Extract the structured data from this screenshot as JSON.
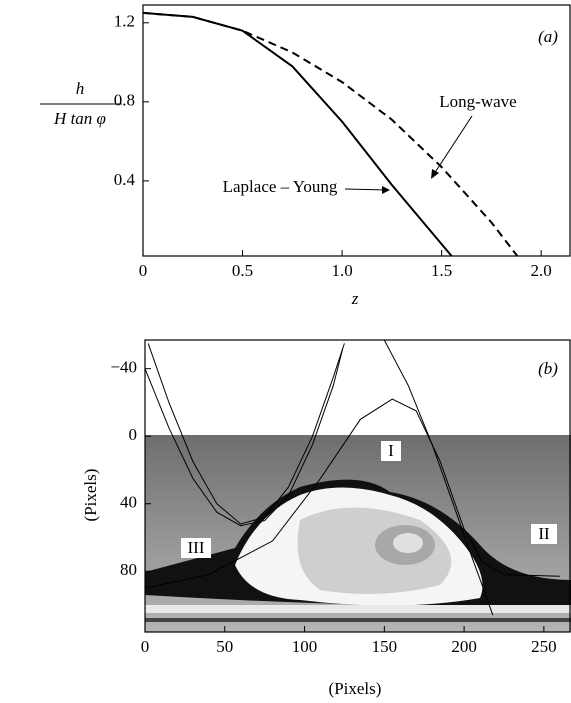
{
  "chart_data": [
    {
      "type": "line",
      "panel_label": "(a)",
      "xlabel": "z",
      "ylabel": {
        "numerator": "h",
        "denominator": "H tan φ"
      },
      "xlim": [
        0,
        2.15
      ],
      "ylim": [
        0.02,
        1.29
      ],
      "xticks": [
        0,
        0.5,
        {
          "value": 1,
          "label": "1.0"
        },
        1.5,
        {
          "value": 2,
          "label": "2.0"
        }
      ],
      "yticks": [
        0.4,
        0.8,
        1.2
      ],
      "annotations": [
        "Laplace – Young",
        "Long-wave"
      ],
      "series": [
        {
          "color": "#000",
          "dash": false,
          "x": [
            0,
            0.25,
            0.5,
            0.75,
            1.0,
            1.25,
            1.5,
            1.55
          ],
          "values": [
            1.25,
            1.23,
            1.16,
            0.98,
            0.7,
            0.38,
            0.08,
            0.02
          ]
        },
        {
          "color": "#000",
          "dash": true,
          "x": [
            0,
            0.25,
            0.5,
            0.75,
            1.0,
            1.25,
            1.5,
            1.75,
            1.88
          ],
          "values": [
            1.25,
            1.23,
            1.16,
            1.05,
            0.9,
            0.71,
            0.47,
            0.19,
            0.02
          ]
        }
      ]
    },
    {
      "type": "line",
      "panel_label": "(b)",
      "xlabel": "(Pixels)",
      "ylabel": "(Pixels)",
      "xlim": [
        0,
        267
      ],
      "ylim": [
        116,
        -57
      ],
      "xticks": [
        0,
        50,
        100,
        150,
        200,
        250
      ],
      "yticks": [
        {
          "value": -40,
          "label": "−40"
        },
        0,
        40,
        80
      ],
      "regions": [
        "I",
        "II",
        "III"
      ],
      "series": [
        {
          "color": "#000",
          "dash": false,
          "x": [
            2,
            15,
            30,
            45,
            60,
            75,
            90,
            105,
            118,
            125
          ],
          "values": [
            -55,
            -20,
            15,
            40,
            52,
            48,
            30,
            0,
            -35,
            -55
          ]
        },
        {
          "color": "#000",
          "dash": false,
          "x": [
            0,
            15,
            30,
            45,
            60,
            75,
            90,
            105,
            118,
            124
          ],
          "values": [
            -40,
            -5,
            25,
            45,
            53,
            50,
            35,
            5,
            -30,
            -52
          ]
        },
        {
          "color": "#000",
          "dash": false,
          "x": [
            0,
            40,
            80,
            110,
            135,
            155,
            170,
            185,
            200,
            212,
            225,
            260
          ],
          "values": [
            90,
            82,
            62,
            25,
            -10,
            -22,
            -15,
            15,
            55,
            75,
            82,
            83
          ]
        },
        {
          "color": "#000",
          "dash": false,
          "x": [
            150,
            165,
            180,
            195,
            205,
            212,
            218
          ],
          "values": [
            -57,
            -30,
            5,
            45,
            72,
            90,
            106
          ]
        }
      ]
    }
  ]
}
